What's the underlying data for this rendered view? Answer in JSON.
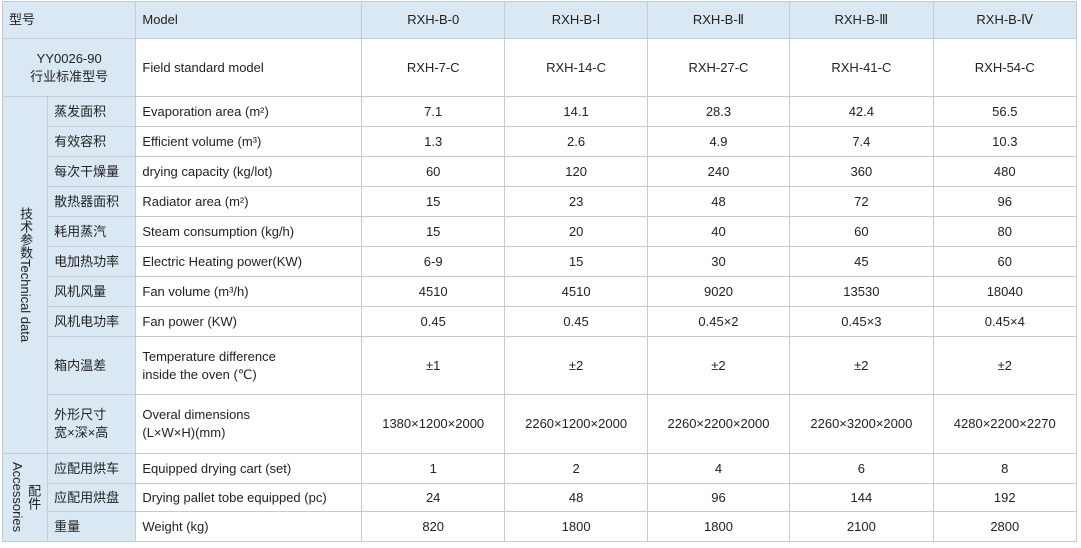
{
  "header": {
    "label": "型号",
    "label_en": "Model",
    "models": [
      "RXH-B-0",
      "RXH-B-Ⅰ",
      "RXH-B-Ⅱ",
      "RXH-B-Ⅲ",
      "RXH-B-Ⅳ"
    ]
  },
  "standard": {
    "label": "YY0026-90\n行业标准型号",
    "label_en": "Field standard model",
    "values": [
      "RXH-7-C",
      "RXH-14-C",
      "RXH-27-C",
      "RXH-41-C",
      "RXH-54-C"
    ]
  },
  "technical": {
    "label": "技术参数Technical data",
    "rows": [
      {
        "cn": "蒸发面积",
        "en": "Evaporation area (m²)",
        "values": [
          7.1,
          14.1,
          28.3,
          42.4,
          56.5
        ]
      },
      {
        "cn": "有效容积",
        "en": "Efficient volume (m³)",
        "values": [
          1.3,
          2.6,
          4.9,
          7.4,
          10.3
        ]
      },
      {
        "cn": "每次干燥量",
        "en": "drying capacity (kg/lot)",
        "values": [
          60,
          120,
          240,
          360,
          480
        ]
      },
      {
        "cn": "散热器面积",
        "en": "Radiator area (m²)",
        "values": [
          15,
          23,
          48,
          72,
          96
        ]
      },
      {
        "cn": "耗用蒸汽",
        "en": "Steam consumption (kg/h)",
        "values": [
          15,
          20,
          40,
          60,
          80
        ]
      },
      {
        "cn": "电加热功率",
        "en": "Electric Heating power(KW)",
        "values": [
          "6-9",
          15,
          30,
          45,
          60
        ]
      },
      {
        "cn": "风机风量",
        "en": "Fan volume (m³/h)",
        "values": [
          4510,
          4510,
          9020,
          13530,
          18040
        ]
      },
      {
        "cn": "风机电功率",
        "en": "Fan power (KW)",
        "values": [
          0.45,
          0.45,
          "0.45×2",
          "0.45×3",
          "0.45×4"
        ]
      },
      {
        "cn": "箱内温差",
        "en": "Temperature difference\ninside the oven (℃)",
        "values": [
          "±1",
          "±2",
          "±2",
          "±2",
          "±2"
        ]
      },
      {
        "cn": "外形尺寸\n宽×深×高",
        "en": "Overal dimensions\n(L×W×H)(mm)",
        "values": [
          "1380×1200×2000",
          "2260×1200×2000",
          "2260×2200×2000",
          "2260×3200×2000",
          "4280×2200×2270"
        ]
      }
    ]
  },
  "accessories": {
    "label": "配件",
    "label_en": "Accessories",
    "rows": [
      {
        "cn": "应配用烘车",
        "en": "Equipped drying cart (set)",
        "values": [
          1,
          2,
          4,
          6,
          8
        ]
      },
      {
        "cn": "应配用烘盘",
        "en": "Drying pallet tobe equipped (pc)",
        "values": [
          24,
          48,
          96,
          144,
          192
        ]
      },
      {
        "cn": "重量",
        "en": "Weight (kg)",
        "values": [
          820,
          1800,
          1800,
          2100,
          2800
        ]
      }
    ]
  }
}
